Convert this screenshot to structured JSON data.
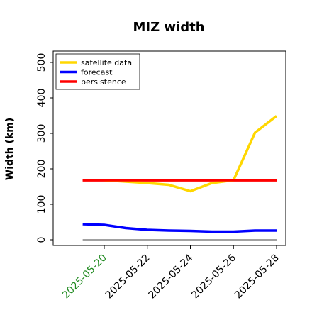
{
  "chart_data": {
    "type": "line",
    "title": "MIZ width",
    "xlabel": "",
    "ylabel": "Width (km)",
    "ylim": [
      -12,
      515
    ],
    "xlim": [
      "2025-05-18",
      "2025-05-28"
    ],
    "x_ticks": [
      "2025-05-20",
      "2025-05-22",
      "2025-05-24",
      "2025-05-26",
      "2025-05-28"
    ],
    "highlighted_tick": "2025-05-20",
    "highlight_color": "#228b22",
    "y_ticks": [
      0,
      100,
      200,
      300,
      400,
      500
    ],
    "legend_position": "top-left",
    "grid": false,
    "x": [
      "2025-05-19",
      "2025-05-20",
      "2025-05-21",
      "2025-05-22",
      "2025-05-23",
      "2025-05-24",
      "2025-05-25",
      "2025-05-26",
      "2025-05-27",
      "2025-05-28"
    ],
    "series": [
      {
        "name": "satellite data",
        "color": "#ffd700",
        "values": [
          null,
          168,
          164,
          160,
          155,
          137,
          160,
          168,
          302,
          349
        ]
      },
      {
        "name": "forecast",
        "color": "#0000ff",
        "values": [
          44,
          42,
          33,
          28,
          26,
          25,
          23,
          23,
          26,
          26
        ]
      },
      {
        "name": "persistence",
        "color": "#ff0000",
        "values": [
          168,
          168,
          168,
          168,
          168,
          168,
          168,
          168,
          168,
          168
        ]
      }
    ],
    "reference_line": {
      "color": "#808080",
      "value": 0,
      "x": [
        "2025-05-19",
        "2025-05-28"
      ]
    }
  }
}
